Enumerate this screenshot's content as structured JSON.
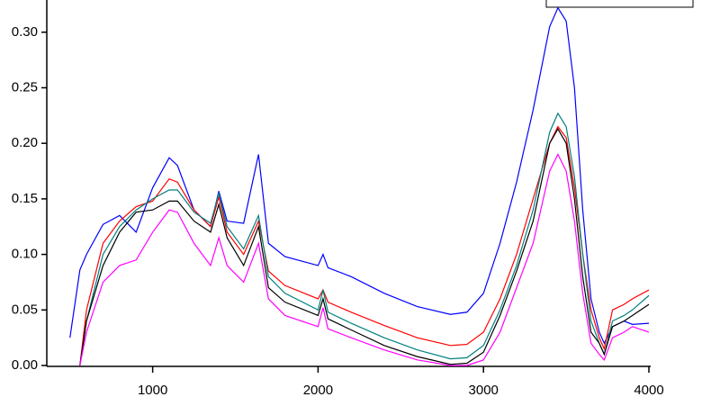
{
  "chart_data": {
    "type": "line",
    "x": [
      500,
      560,
      600,
      700,
      800,
      900,
      1000,
      1100,
      1150,
      1250,
      1350,
      1400,
      1450,
      1550,
      1640,
      1700,
      1800,
      2000,
      2030,
      2060,
      2200,
      2400,
      2600,
      2800,
      2900,
      3000,
      3100,
      3200,
      3300,
      3400,
      3450,
      3500,
      3550,
      3600,
      3650,
      3700,
      3730,
      3780,
      3850,
      3900,
      4000
    ],
    "series": [
      {
        "color": "#0000ff",
        "values": [
          0.025,
          0.086,
          0.1,
          0.127,
          0.135,
          0.12,
          0.16,
          0.187,
          0.18,
          0.14,
          0.125,
          0.157,
          0.13,
          0.128,
          0.19,
          0.11,
          0.098,
          0.09,
          0.1,
          0.088,
          0.08,
          0.065,
          0.053,
          0.046,
          0.048,
          0.065,
          0.11,
          0.165,
          0.23,
          0.305,
          0.322,
          0.31,
          0.25,
          0.14,
          0.06,
          0.03,
          0.02,
          0.035,
          0.04,
          0.037,
          0.038
        ]
      },
      {
        "color": "#ff0000",
        "values": [
          null,
          0.0,
          0.05,
          0.11,
          0.13,
          0.143,
          0.148,
          0.168,
          0.165,
          0.14,
          0.125,
          0.152,
          0.12,
          0.1,
          0.13,
          0.085,
          0.072,
          0.06,
          0.068,
          0.057,
          0.048,
          0.036,
          0.025,
          0.018,
          0.019,
          0.03,
          0.06,
          0.1,
          0.15,
          0.2,
          0.215,
          0.205,
          0.16,
          0.1,
          0.05,
          0.025,
          0.015,
          0.05,
          0.055,
          0.06,
          0.068
        ]
      },
      {
        "color": "#008080",
        "values": [
          null,
          0.0,
          0.04,
          0.1,
          0.125,
          0.14,
          0.15,
          0.158,
          0.158,
          0.138,
          0.128,
          0.155,
          0.125,
          0.105,
          0.135,
          0.08,
          0.065,
          0.05,
          0.068,
          0.048,
          0.038,
          0.025,
          0.014,
          0.006,
          0.007,
          0.018,
          0.05,
          0.09,
          0.14,
          0.21,
          0.227,
          0.215,
          0.17,
          0.1,
          0.04,
          0.02,
          0.01,
          0.04,
          0.045,
          0.05,
          0.063
        ]
      },
      {
        "color": "#000000",
        "values": [
          null,
          0.0,
          0.04,
          0.09,
          0.12,
          0.138,
          0.14,
          0.148,
          0.148,
          0.13,
          0.12,
          0.145,
          0.115,
          0.09,
          0.125,
          0.07,
          0.057,
          0.045,
          0.06,
          0.042,
          0.032,
          0.018,
          0.008,
          0.001,
          0.002,
          0.012,
          0.045,
          0.085,
          0.13,
          0.2,
          0.213,
          0.2,
          0.15,
          0.08,
          0.03,
          0.02,
          0.01,
          0.035,
          0.04,
          0.045,
          0.055
        ]
      },
      {
        "color": "#ff00ff",
        "values": [
          null,
          0.0,
          0.03,
          0.075,
          0.09,
          0.095,
          0.12,
          0.14,
          0.138,
          0.11,
          0.09,
          0.115,
          0.09,
          0.075,
          0.11,
          0.06,
          0.045,
          0.035,
          0.052,
          0.033,
          0.025,
          0.014,
          0.005,
          0.0,
          0.0,
          0.005,
          0.03,
          0.07,
          0.11,
          0.175,
          0.19,
          0.175,
          0.13,
          0.065,
          0.02,
          0.01,
          0.005,
          0.025,
          0.03,
          0.035,
          0.03
        ]
      }
    ],
    "xlim": [
      360,
      4000
    ],
    "xticks": [
      1000,
      2000,
      3000,
      4000
    ],
    "ylim": [
      0,
      0.329
    ],
    "yticks": [
      {
        "value": 0,
        "label": "0.00"
      },
      0.05,
      {
        "value": 0.1,
        "label": "0.10"
      },
      0.15,
      {
        "value": 0.2,
        "label": "0.20"
      },
      0.25,
      {
        "value": 0.3,
        "label": "0.30"
      }
    ]
  }
}
